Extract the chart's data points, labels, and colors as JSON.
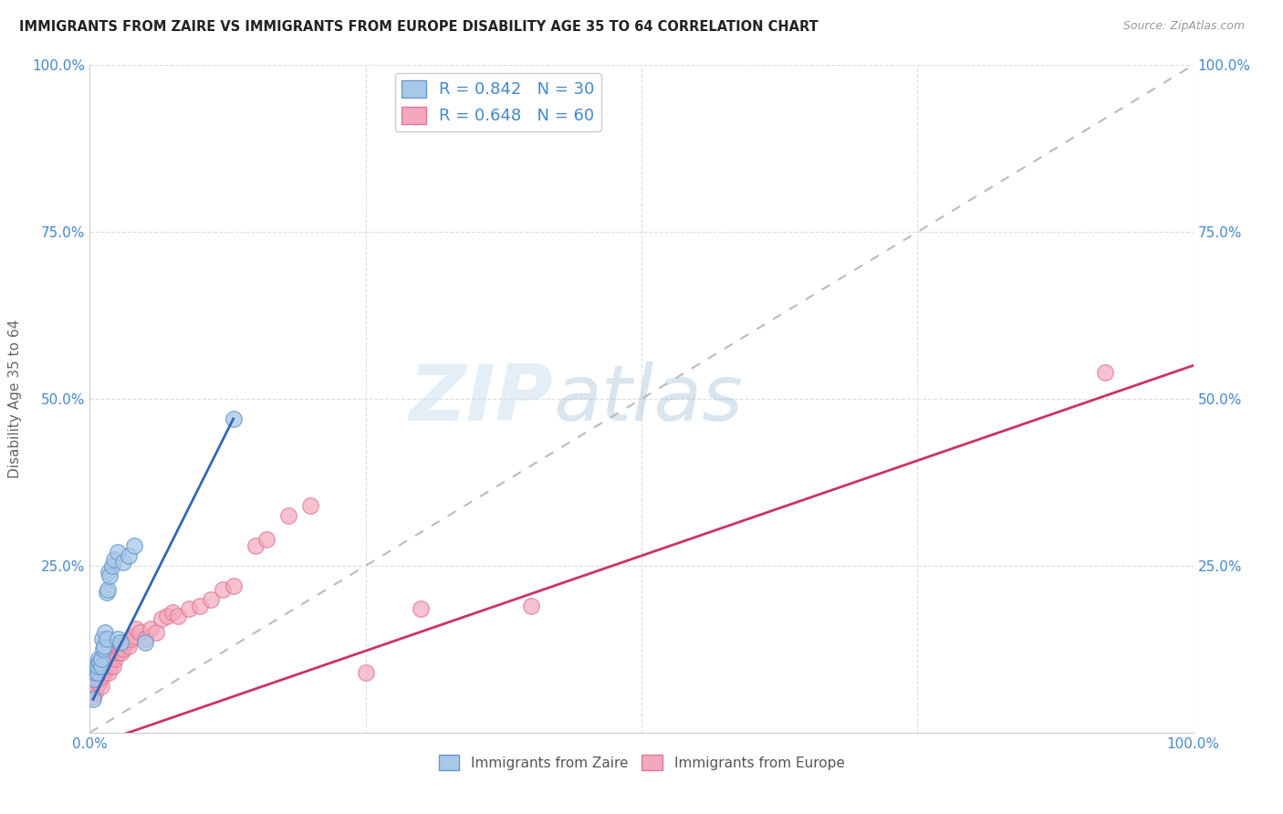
{
  "title": "IMMIGRANTS FROM ZAIRE VS IMMIGRANTS FROM EUROPE DISABILITY AGE 35 TO 64 CORRELATION CHART",
  "source": "Source: ZipAtlas.com",
  "ylabel": "Disability Age 35 to 64",
  "xlim": [
    0,
    100
  ],
  "ylim": [
    0,
    100
  ],
  "xticks": [
    0,
    25,
    50,
    75,
    100
  ],
  "xticklabels": [
    "0.0%",
    "",
    "",
    "",
    "100.0%"
  ],
  "yticks": [
    0,
    25,
    50,
    75,
    100
  ],
  "yticklabels_left": [
    "",
    "25.0%",
    "50.0%",
    "75.0%",
    "100.0%"
  ],
  "yticklabels_right": [
    "",
    "25.0%",
    "50.0%",
    "75.0%",
    "100.0%"
  ],
  "zaire_color": "#a8c8e8",
  "europe_color": "#f4a8bc",
  "zaire_edge": "#6699cc",
  "europe_edge": "#dd7799",
  "zaire_line_color": "#3366bb",
  "europe_line_color": "#cc3366",
  "diagonal_color": "#bbbbbb",
  "R_zaire": 0.842,
  "N_zaire": 30,
  "R_europe": 0.648,
  "N_europe": 60,
  "legend_label_zaire": "Immigrants from Zaire",
  "legend_label_europe": "Immigrants from Europe",
  "watermark_zip": "ZIP",
  "watermark_atlas": "atlas",
  "tick_color": "#4488cc",
  "background_color": "#ffffff",
  "grid_color": "#dddddd",
  "zaire_x": [
    0.3,
    0.4,
    0.5,
    0.5,
    0.6,
    0.7,
    0.7,
    0.8,
    0.9,
    1.0,
    1.0,
    1.1,
    1.2,
    1.3,
    1.4,
    1.5,
    1.5,
    1.6,
    1.7,
    1.8,
    2.0,
    2.2,
    2.5,
    2.5,
    2.8,
    3.0,
    3.5,
    4.0,
    5.0,
    13.0
  ],
  "zaire_y": [
    5.0,
    8.0,
    9.0,
    10.0,
    9.5,
    9.0,
    10.0,
    11.0,
    10.5,
    10.0,
    11.0,
    14.0,
    12.5,
    13.0,
    15.0,
    14.0,
    21.0,
    21.5,
    24.0,
    23.5,
    25.0,
    26.0,
    27.0,
    14.0,
    13.5,
    25.5,
    26.5,
    28.0,
    13.5,
    47.0
  ],
  "europe_x": [
    0.1,
    0.2,
    0.3,
    0.4,
    0.5,
    0.5,
    0.6,
    0.7,
    0.8,
    0.8,
    0.9,
    1.0,
    1.0,
    1.1,
    1.1,
    1.2,
    1.3,
    1.4,
    1.5,
    1.6,
    1.7,
    1.8,
    1.9,
    2.0,
    2.1,
    2.2,
    2.3,
    2.4,
    2.5,
    2.6,
    2.7,
    2.8,
    2.9,
    3.0,
    3.2,
    3.5,
    3.8,
    4.0,
    4.2,
    4.5,
    5.0,
    5.5,
    6.0,
    6.5,
    7.0,
    7.5,
    8.0,
    9.0,
    10.0,
    11.0,
    12.0,
    13.0,
    15.0,
    16.0,
    18.0,
    20.0,
    25.0,
    30.0,
    40.0,
    92.0
  ],
  "europe_y": [
    6.0,
    6.5,
    5.5,
    7.0,
    6.0,
    7.5,
    7.0,
    8.0,
    7.5,
    8.5,
    8.0,
    7.0,
    9.0,
    8.5,
    10.0,
    9.5,
    10.5,
    9.0,
    9.5,
    10.0,
    9.0,
    10.5,
    10.0,
    11.0,
    10.0,
    11.5,
    11.0,
    12.0,
    12.5,
    12.0,
    12.5,
    13.0,
    12.0,
    12.5,
    13.5,
    13.0,
    14.0,
    14.5,
    15.5,
    15.0,
    14.0,
    15.5,
    15.0,
    17.0,
    17.5,
    18.0,
    17.5,
    18.5,
    19.0,
    20.0,
    21.5,
    22.0,
    28.0,
    29.0,
    32.5,
    34.0,
    9.0,
    18.5,
    19.0,
    54.0
  ],
  "europe_line_x0": 0,
  "europe_line_y0": -2.0,
  "europe_line_x1": 100,
  "europe_line_y1": 55.0,
  "zaire_line_x0": 0.3,
  "zaire_line_y0": 5.0,
  "zaire_line_x1": 13.0,
  "zaire_line_y1": 47.0
}
